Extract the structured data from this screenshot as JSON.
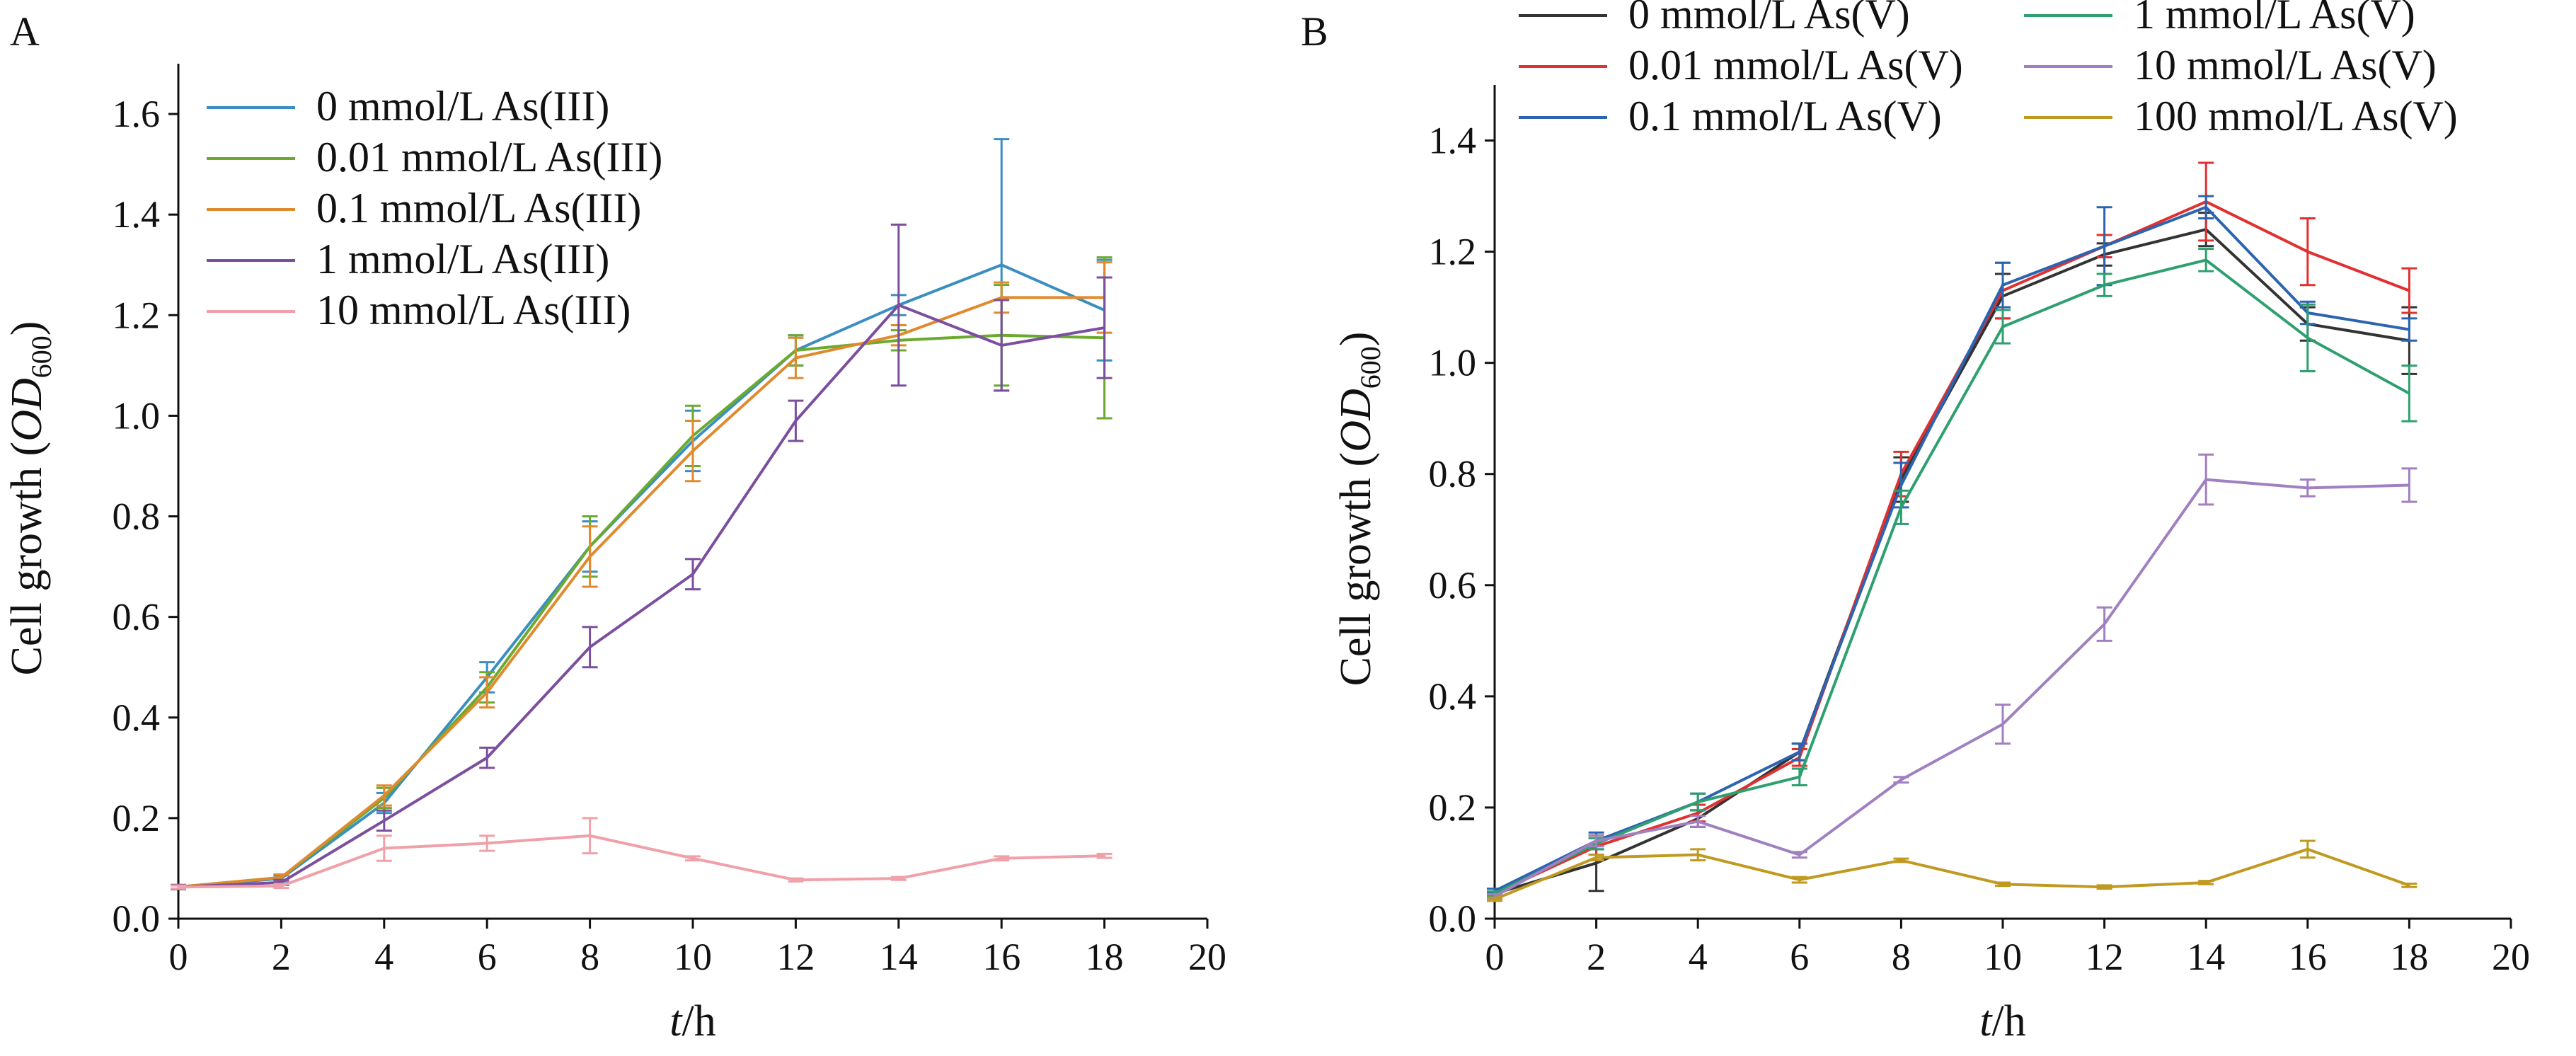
{
  "chart_data": [
    {
      "panel": "A",
      "type": "line",
      "title": "",
      "xlabel_italic": "t",
      "xlabel_unit": "/h",
      "ylabel_prefix": "Cell growth (",
      "ylabel_italic": "OD",
      "ylabel_sub": "600",
      "ylabel_suffix": ")",
      "xlim": [
        0,
        20
      ],
      "ylim": [
        0,
        1.7
      ],
      "xticks": [
        "0",
        "2",
        "4",
        "6",
        "8",
        "10",
        "12",
        "14",
        "16",
        "18",
        "20"
      ],
      "yticks": [
        "0.0",
        "0.2",
        "0.4",
        "0.6",
        "0.8",
        "1.0",
        "1.2",
        "1.4",
        "1.6"
      ],
      "grid": false,
      "legend_position": "top-left",
      "x": [
        0,
        2,
        4,
        6,
        8,
        10,
        12,
        14,
        16,
        18
      ],
      "series": [
        {
          "name": "0 mmol/L As(III)",
          "color": "#3a8fc0",
          "values": [
            0.063,
            0.08,
            0.23,
            0.48,
            0.74,
            0.95,
            1.13,
            1.22,
            1.3,
            1.21
          ],
          "errors": [
            0.004,
            0.006,
            0.02,
            0.03,
            0.05,
            0.06,
            0.03,
            0.02,
            0.25,
            0.1
          ]
        },
        {
          "name": "0.01 mmol/L As(III)",
          "color": "#6aaa2e",
          "values": [
            0.063,
            0.082,
            0.24,
            0.46,
            0.74,
            0.96,
            1.13,
            1.15,
            1.16,
            1.155
          ],
          "errors": [
            0.004,
            0.006,
            0.02,
            0.03,
            0.06,
            0.06,
            0.03,
            0.02,
            0.1,
            0.16
          ]
        },
        {
          "name": "0.1 mmol/L As(III)",
          "color": "#e08a2e",
          "values": [
            0.063,
            0.082,
            0.245,
            0.45,
            0.72,
            0.93,
            1.115,
            1.16,
            1.235,
            1.235
          ],
          "errors": [
            0.004,
            0.006,
            0.02,
            0.03,
            0.06,
            0.06,
            0.04,
            0.02,
            0.03,
            0.07
          ]
        },
        {
          "name": "1 mmol/L As(III)",
          "color": "#7b4f9e",
          "values": [
            0.063,
            0.072,
            0.195,
            0.32,
            0.54,
            0.685,
            0.99,
            1.22,
            1.14,
            1.175
          ],
          "errors": [
            0.004,
            0.005,
            0.02,
            0.02,
            0.04,
            0.03,
            0.04,
            0.16,
            0.09,
            0.1
          ]
        },
        {
          "name": "10 mmol/L As(III)",
          "color": "#f0a0a8",
          "values": [
            0.063,
            0.065,
            0.14,
            0.15,
            0.165,
            0.12,
            0.077,
            0.08,
            0.12,
            0.125
          ],
          "errors": [
            0.003,
            0.004,
            0.025,
            0.015,
            0.035,
            0.004,
            0.003,
            0.003,
            0.004,
            0.004
          ]
        }
      ]
    },
    {
      "panel": "B",
      "type": "line",
      "title": "",
      "xlabel_italic": "t",
      "xlabel_unit": "/h",
      "ylabel_prefix": "Cell growth (",
      "ylabel_italic": "OD",
      "ylabel_sub": "600",
      "ylabel_suffix": ")",
      "xlim": [
        0,
        20
      ],
      "ylim": [
        0,
        1.5
      ],
      "xticks": [
        "0",
        "2",
        "4",
        "6",
        "8",
        "10",
        "12",
        "14",
        "16",
        "18",
        "20"
      ],
      "yticks": [
        "0.0",
        "0.2",
        "0.4",
        "0.6",
        "0.8",
        "1.0",
        "1.2",
        "1.4"
      ],
      "grid": false,
      "legend_position": "top",
      "x": [
        0,
        2,
        4,
        6,
        8,
        10,
        12,
        14,
        16,
        18
      ],
      "series": [
        {
          "name": "0 mmol/L As(V)",
          "color": "#333333",
          "values": [
            0.045,
            0.1,
            0.18,
            0.3,
            0.79,
            1.12,
            1.195,
            1.24,
            1.07,
            1.04
          ],
          "errors": [
            0.004,
            0.05,
            0.015,
            0.015,
            0.04,
            0.04,
            0.02,
            0.03,
            0.03,
            0.06
          ]
        },
        {
          "name": "0.01 mmol/L As(V)",
          "color": "#e03030",
          "values": [
            0.045,
            0.13,
            0.19,
            0.29,
            0.8,
            1.13,
            1.21,
            1.29,
            1.2,
            1.13
          ],
          "errors": [
            0.004,
            0.015,
            0.015,
            0.015,
            0.04,
            0.05,
            0.02,
            0.07,
            0.06,
            0.04
          ]
        },
        {
          "name": "0.1 mmol/L As(V)",
          "color": "#2b64b0",
          "values": [
            0.05,
            0.14,
            0.21,
            0.3,
            0.78,
            1.14,
            1.21,
            1.28,
            1.09,
            1.06
          ],
          "errors": [
            0.004,
            0.015,
            0.015,
            0.015,
            0.04,
            0.04,
            0.07,
            0.02,
            0.02,
            0.02
          ]
        },
        {
          "name": "1 mmol/L As(V)",
          "color": "#2ea070",
          "values": [
            0.045,
            0.135,
            0.21,
            0.255,
            0.74,
            1.065,
            1.14,
            1.185,
            1.045,
            0.945
          ],
          "errors": [
            0.004,
            0.01,
            0.015,
            0.015,
            0.03,
            0.03,
            0.02,
            0.02,
            0.06,
            0.05
          ]
        },
        {
          "name": "10 mmol/L As(V)",
          "color": "#a080c0",
          "values": [
            0.04,
            0.14,
            0.175,
            0.115,
            0.25,
            0.35,
            0.53,
            0.79,
            0.775,
            0.78
          ],
          "errors": [
            0.004,
            0.01,
            0.01,
            0.005,
            0.005,
            0.035,
            0.03,
            0.045,
            0.015,
            0.03
          ]
        },
        {
          "name": "100 mmol/L As(V)",
          "color": "#c09a20",
          "values": [
            0.035,
            0.11,
            0.115,
            0.07,
            0.105,
            0.062,
            0.057,
            0.065,
            0.125,
            0.06
          ],
          "errors": [
            0.003,
            0.005,
            0.01,
            0.005,
            0.003,
            0.003,
            0.003,
            0.003,
            0.015,
            0.003
          ]
        }
      ]
    }
  ]
}
